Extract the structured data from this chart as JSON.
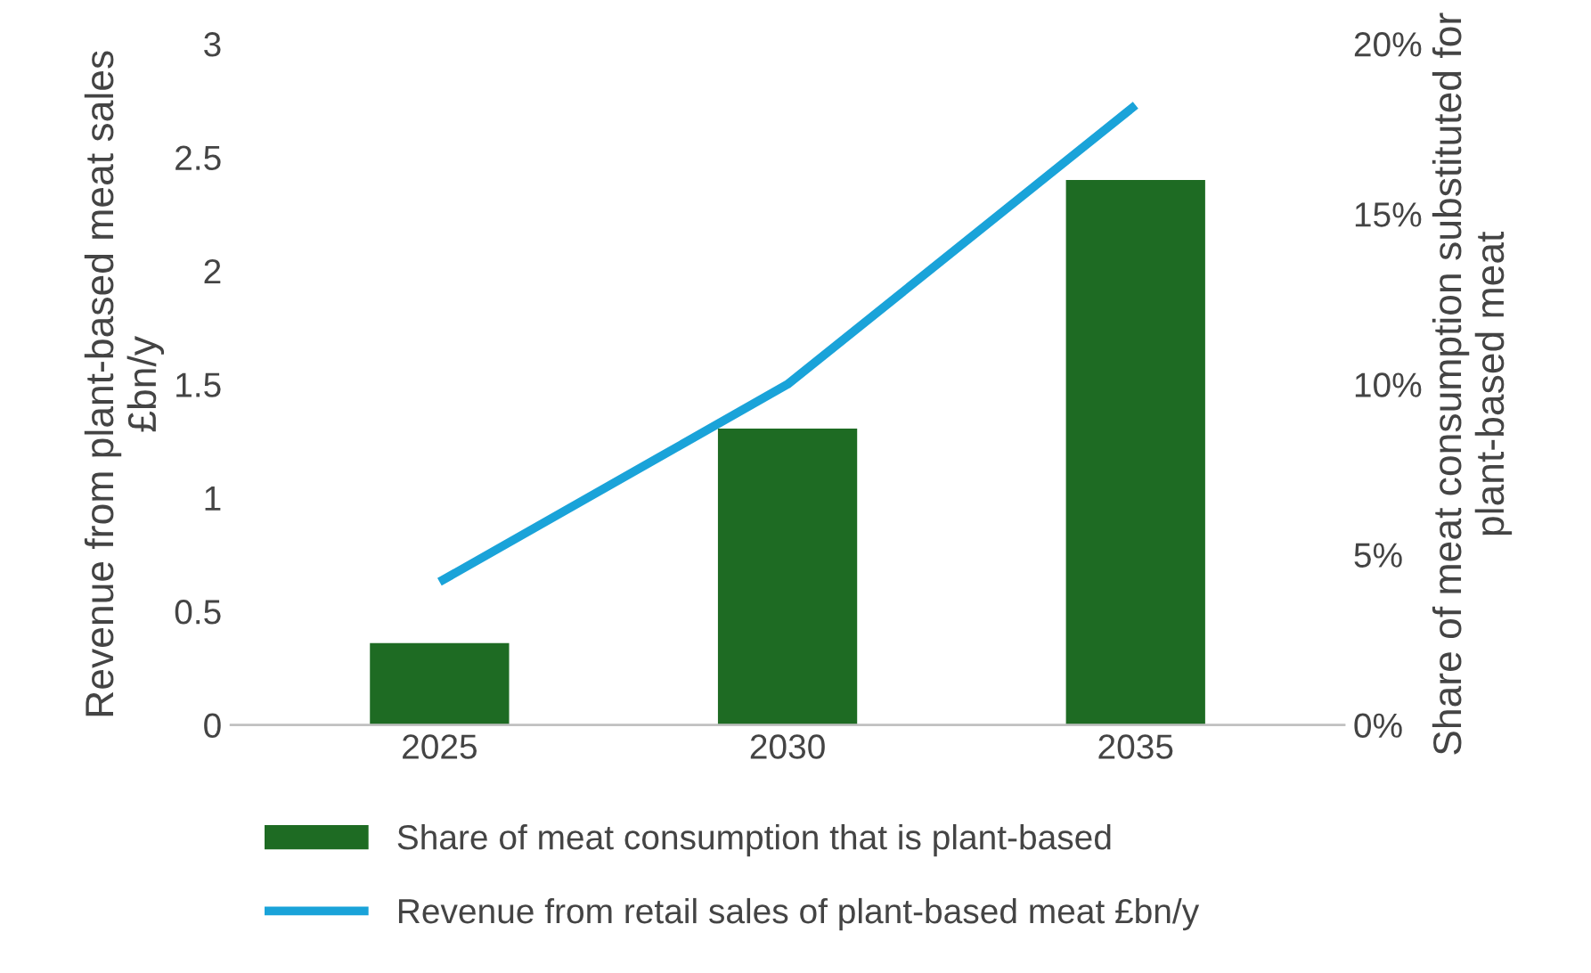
{
  "chart_data": {
    "type": "bar",
    "categories": [
      "2025",
      "2030",
      "2035"
    ],
    "ylabel": "Revenue from plant-based meat sales £bn/y",
    "y2label": "Share of meat consumption substituted for plant-based meat",
    "series": [
      {
        "name": "Share of meat consumption that is plant-based",
        "axis": "y2",
        "color": "#1e6b23",
        "values": [
          2.4,
          8.7,
          16
        ]
      },
      {
        "name": "Revenue from retail sales of plant-based meat £bn/y",
        "type": "line",
        "axis": "y",
        "color": "#1aa3d9",
        "values": [
          0.63,
          1.5,
          2.73
        ]
      }
    ],
    "ylim": [
      0,
      3
    ],
    "yticks": [
      0,
      0.5,
      1,
      1.5,
      2,
      2.5,
      3
    ],
    "y2lim": [
      0,
      20
    ],
    "y2ticks": [
      {
        "value": 0,
        "label": "0%"
      },
      {
        "value": 5,
        "label": "5%"
      },
      {
        "value": 10,
        "label": "10%"
      },
      {
        "value": 15,
        "label": "15%"
      },
      {
        "value": 20,
        "label": "20%"
      }
    ],
    "legend": "bottom",
    "grid": false,
    "marker": "none"
  }
}
